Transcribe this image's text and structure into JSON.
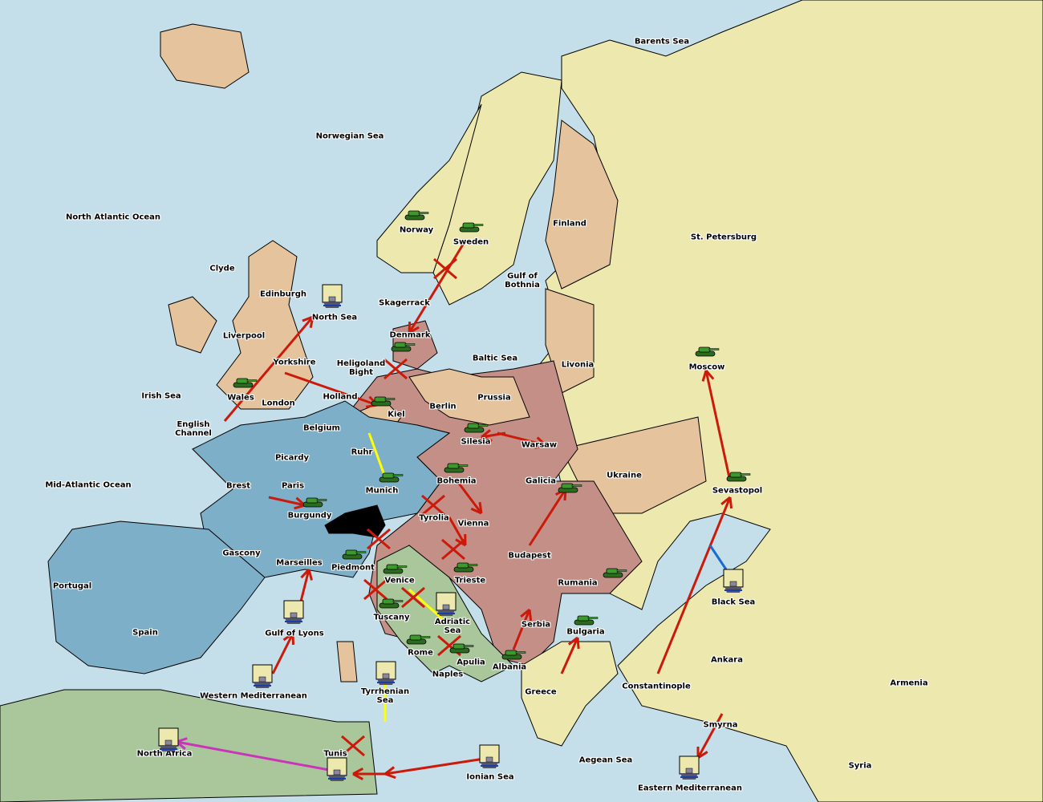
{
  "colors": {
    "sea": "#c5dfea",
    "england_france": "#7eafc8",
    "austria_germany": "#c38f87",
    "neutral": "#e5c39d",
    "russia_turkey": "#ede9ae",
    "italy_africa": "#a9c79a",
    "army": "#3c9a2c",
    "order": "#cc1a0a",
    "support": "#ffff00",
    "convoy": "#cc33bb"
  },
  "provinces": [
    "Barents Sea",
    "Norwegian Sea",
    "North Atlantic Ocean",
    "Norway",
    "Sweden",
    "Finland",
    "St. Petersburg",
    "Gulf of\nBothnia",
    "Clyde",
    "Edinburgh",
    "North Sea",
    "Skagerrack",
    "Liverpool",
    "Denmark",
    "Baltic Sea",
    "Livonia",
    "Moscow",
    "Yorkshire",
    "Heligoland\nBight",
    "Irish Sea",
    "Wales",
    "London",
    "Holland",
    "Kiel",
    "Berlin",
    "Prussia",
    "English\nChannel",
    "Belgium",
    "Silesia",
    "Warsaw",
    "Ruhr",
    "Picardy",
    "Ukraine",
    "Mid-Atlantic Ocean",
    "Brest",
    "Paris",
    "Munich",
    "Bohemia",
    "Galicia",
    "Sevastopol",
    "Burgundy",
    "Tyrolia",
    "Vienna",
    "Gascony",
    "Budapest",
    "Marseilles",
    "Piedmont",
    "Portugal",
    "Venice",
    "Trieste",
    "Rumania",
    "Black Sea",
    "Tuscany",
    "Adriatic\nSea",
    "Serbia",
    "Bulgaria",
    "Spain",
    "Gulf of Lyons",
    "Rome",
    "Apulia",
    "Albania",
    "Ankara",
    "Naples",
    "Armenia",
    "Constantinople",
    "Greece",
    "Western Mediterranean",
    "Tyrrhenian\nSea",
    "Smyrna",
    "North Africa",
    "Tunis",
    "Aegean Sea",
    "Syria",
    "Ionian Sea",
    "Eastern Mediterranean"
  ],
  "units": [
    {
      "type": "army",
      "province": "Norway"
    },
    {
      "type": "army",
      "province": "Sweden"
    },
    {
      "type": "army",
      "province": "Denmark"
    },
    {
      "type": "army",
      "province": "Wales"
    },
    {
      "type": "army",
      "province": "Kiel"
    },
    {
      "type": "army",
      "province": "Silesia"
    },
    {
      "type": "army",
      "province": "Bohemia"
    },
    {
      "type": "army",
      "province": "Munich"
    },
    {
      "type": "army",
      "province": "Galicia"
    },
    {
      "type": "army",
      "province": "Burgundy"
    },
    {
      "type": "army",
      "province": "Moscow"
    },
    {
      "type": "army",
      "province": "Sevastopol"
    },
    {
      "type": "army",
      "province": "Piedmont"
    },
    {
      "type": "army",
      "province": "Venice"
    },
    {
      "type": "army",
      "province": "Trieste"
    },
    {
      "type": "army",
      "province": "Tuscany"
    },
    {
      "type": "army",
      "province": "Rome"
    },
    {
      "type": "army",
      "province": "Apulia"
    },
    {
      "type": "army",
      "province": "Albania"
    },
    {
      "type": "army",
      "province": "Bulgaria"
    },
    {
      "type": "army",
      "province": "Rumania"
    },
    {
      "type": "fleet",
      "province": "North Sea"
    },
    {
      "type": "fleet",
      "province": "Adriatic Sea"
    },
    {
      "type": "fleet",
      "province": "Gulf of Lyons"
    },
    {
      "type": "fleet",
      "province": "Western Mediterranean"
    },
    {
      "type": "fleet",
      "province": "Tyrrhenian Sea"
    },
    {
      "type": "fleet",
      "province": "North Africa"
    },
    {
      "type": "fleet",
      "province": "Tunis"
    },
    {
      "type": "fleet",
      "province": "Ionian Sea"
    },
    {
      "type": "fleet",
      "province": "Black Sea"
    },
    {
      "type": "fleet",
      "province": "Eastern Mediterranean"
    }
  ]
}
